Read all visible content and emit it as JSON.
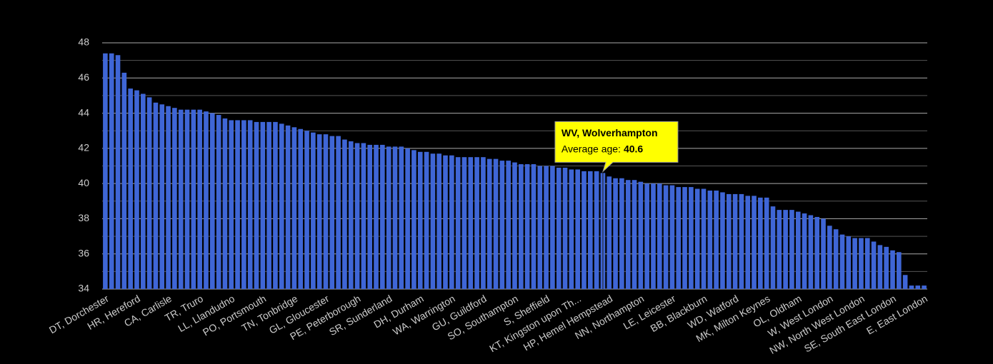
{
  "chart_data": {
    "type": "bar",
    "categories": [
      "DT, Dorchester",
      null,
      null,
      null,
      null,
      "HR, Hereford",
      null,
      null,
      null,
      null,
      "CA, Carlisle",
      null,
      null,
      null,
      null,
      "TR, Truro",
      null,
      null,
      null,
      null,
      "LL, Llandudno",
      null,
      null,
      null,
      null,
      "PO, Portsmouth",
      null,
      null,
      null,
      null,
      "TN, Tonbridge",
      null,
      null,
      null,
      null,
      "GL, Gloucester",
      null,
      null,
      null,
      null,
      "PE, Peterborough",
      null,
      null,
      null,
      null,
      "SR, Sunderland",
      null,
      null,
      null,
      null,
      "DH, Durham",
      null,
      null,
      null,
      null,
      "WA, Warrington",
      null,
      null,
      null,
      null,
      "GU, Guildford",
      null,
      null,
      null,
      null,
      "SO, Southampton",
      null,
      null,
      null,
      null,
      "S, Sheffield",
      null,
      null,
      null,
      null,
      "KT, Kingston upon Th...",
      null,
      null,
      null,
      null,
      "HP, Hemel Hempstead",
      null,
      null,
      null,
      null,
      "NN, Northampton",
      null,
      null,
      null,
      null,
      "LE, Leicester",
      null,
      null,
      null,
      null,
      "BB, Blackburn",
      null,
      null,
      null,
      null,
      "WD, Watford",
      null,
      null,
      null,
      null,
      "MK, Milton Keynes",
      null,
      null,
      null,
      null,
      "OL, Oldham",
      null,
      null,
      null,
      null,
      "W, West London",
      null,
      null,
      null,
      null,
      "NW, North West London",
      null,
      null,
      null,
      null,
      "SE, South East London",
      null,
      null,
      null,
      null,
      "E, East London"
    ],
    "values": [
      47.4,
      47.4,
      47.3,
      46.3,
      45.4,
      45.3,
      45.1,
      44.9,
      44.6,
      44.5,
      44.4,
      44.3,
      44.2,
      44.2,
      44.2,
      44.2,
      44.1,
      44.0,
      43.9,
      43.7,
      43.6,
      43.6,
      43.6,
      43.6,
      43.5,
      43.5,
      43.5,
      43.5,
      43.4,
      43.3,
      43.2,
      43.1,
      43.0,
      42.9,
      42.8,
      42.8,
      42.7,
      42.7,
      42.5,
      42.4,
      42.3,
      42.3,
      42.2,
      42.2,
      42.2,
      42.1,
      42.1,
      42.1,
      42.0,
      41.9,
      41.8,
      41.8,
      41.7,
      41.7,
      41.6,
      41.6,
      41.5,
      41.5,
      41.5,
      41.5,
      41.5,
      41.4,
      41.4,
      41.3,
      41.3,
      41.2,
      41.1,
      41.1,
      41.1,
      41.0,
      41.0,
      41.0,
      40.9,
      40.9,
      40.8,
      40.8,
      40.7,
      40.7,
      40.7,
      40.6,
      40.4,
      40.3,
      40.3,
      40.2,
      40.2,
      40.1,
      40.0,
      40.0,
      40.0,
      39.9,
      39.9,
      39.8,
      39.8,
      39.8,
      39.7,
      39.7,
      39.6,
      39.6,
      39.5,
      39.4,
      39.4,
      39.4,
      39.3,
      39.3,
      39.2,
      39.2,
      38.7,
      38.5,
      38.5,
      38.5,
      38.4,
      38.3,
      38.2,
      38.1,
      38.0,
      37.6,
      37.4,
      37.1,
      37.0,
      36.9,
      36.9,
      36.9,
      36.7,
      36.5,
      36.4,
      36.2,
      36.1,
      34.8,
      34.2,
      34.2,
      34.2
    ],
    "color": "#3f66d6",
    "ylim": [
      34,
      48
    ],
    "yticks": [
      34,
      36,
      38,
      40,
      42,
      44,
      46,
      48
    ],
    "yticks_minor": [
      35,
      37,
      39,
      41,
      43,
      45,
      47
    ],
    "grid": true,
    "tooltip": {
      "index": 79,
      "title": "WV, Wolverhampton",
      "label": "Average age:"
    }
  }
}
